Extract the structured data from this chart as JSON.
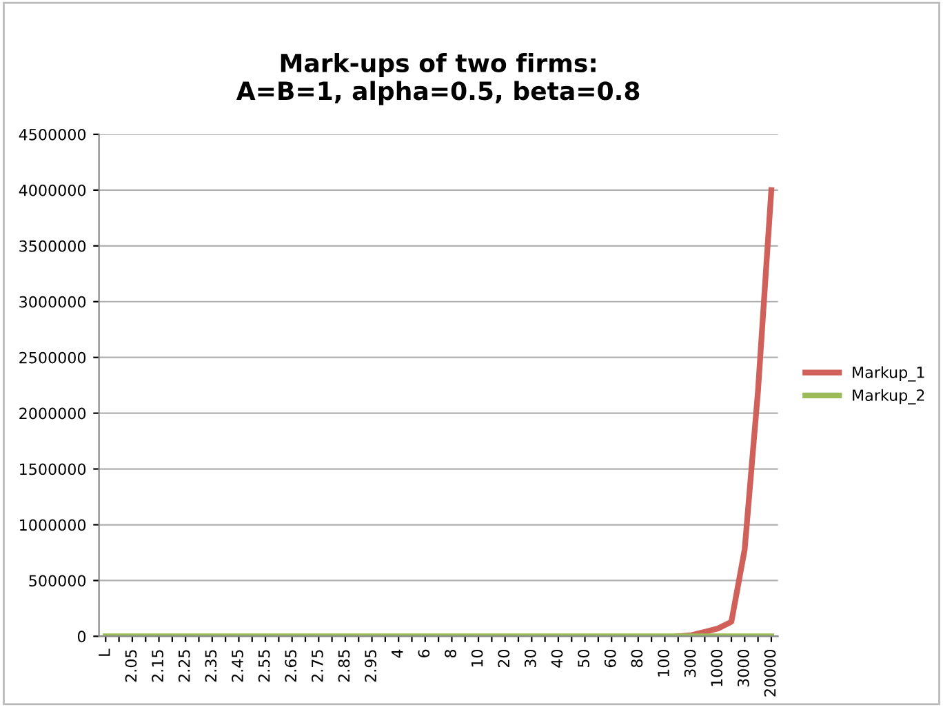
{
  "chart_data": {
    "type": "line",
    "title": "Mark-ups of two firms:\nA=B=1, alpha=0.5, beta=0.8",
    "categories": [
      "L",
      null,
      "2.05",
      null,
      "2.15",
      null,
      "2.25",
      null,
      "2.35",
      null,
      "2.45",
      null,
      "2.55",
      null,
      "2.65",
      null,
      "2.75",
      null,
      "2.85",
      null,
      "2.95",
      null,
      "4",
      null,
      "6",
      null,
      "8",
      null,
      "10",
      null,
      "20",
      null,
      "30",
      null,
      "40",
      null,
      "50",
      null,
      "60",
      null,
      "80",
      null,
      "100",
      null,
      "300",
      null,
      "1000",
      null,
      "3000",
      null,
      "20000"
    ],
    "series": [
      {
        "name": "Markup_1",
        "color": "#d0605a",
        "values": [
          null,
          null,
          null,
          null,
          null,
          null,
          null,
          null,
          null,
          null,
          null,
          null,
          null,
          null,
          null,
          null,
          null,
          null,
          null,
          null,
          null,
          null,
          null,
          null,
          null,
          null,
          null,
          null,
          null,
          null,
          null,
          null,
          null,
          null,
          null,
          null,
          null,
          null,
          null,
          null,
          null,
          null,
          null,
          0,
          10000,
          40000,
          70000,
          130000,
          780000,
          2200000,
          4000000
        ]
      },
      {
        "name": "Markup_2",
        "color": "#9bbb59",
        "values": [
          0,
          0,
          0,
          0,
          0,
          0,
          0,
          0,
          0,
          0,
          0,
          0,
          0,
          0,
          0,
          0,
          0,
          0,
          0,
          0,
          0,
          0,
          0,
          0,
          0,
          0,
          0,
          0,
          0,
          0,
          0,
          0,
          0,
          0,
          0,
          0,
          0,
          0,
          0,
          0,
          0,
          0,
          0,
          0,
          0,
          0,
          0,
          0,
          0,
          0,
          0
        ]
      }
    ],
    "ylim": [
      0,
      4500000
    ],
    "yticks": [
      0,
      500000,
      1000000,
      1500000,
      2000000,
      2500000,
      3000000,
      3500000,
      4000000,
      4500000
    ],
    "grid": "y",
    "legend": "right",
    "marker": "none",
    "line_style": "solid"
  }
}
